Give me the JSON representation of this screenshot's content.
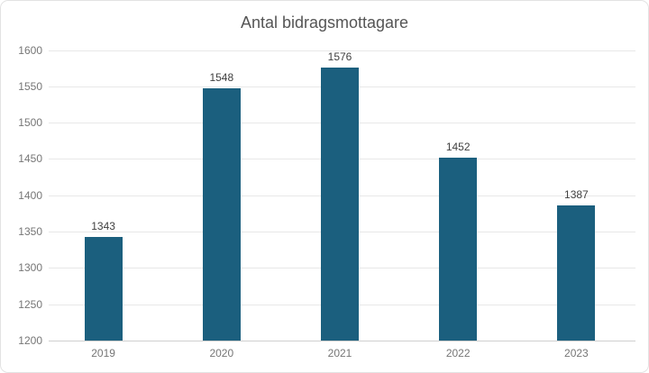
{
  "chart_data": {
    "type": "bar",
    "title": "Antal bidragsmottagare",
    "categories": [
      "2019",
      "2020",
      "2021",
      "2022",
      "2023"
    ],
    "values": [
      1343,
      1548,
      1576,
      1452,
      1387
    ],
    "y_ticks": [
      1600,
      1550,
      1500,
      1450,
      1400,
      1350,
      1300,
      1250,
      1200
    ],
    "ylim": [
      1200,
      1600
    ],
    "xlabel": "",
    "ylabel": "",
    "legend": "none",
    "grid": "horizontal",
    "bar_color": "#1b5f7e"
  }
}
